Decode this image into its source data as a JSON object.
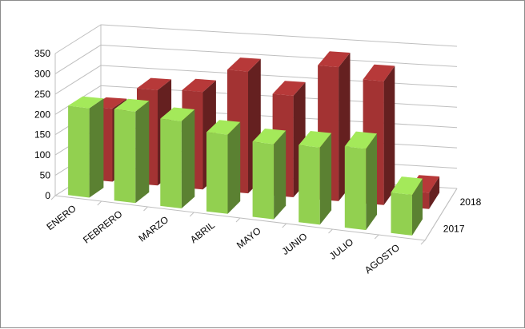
{
  "chart_data": {
    "type": "bar",
    "subtype": "3d-column-stacked-depth",
    "title": "",
    "xlabel": "",
    "ylabel": "",
    "ylim": [
      0,
      350
    ],
    "yticks": [
      0,
      50,
      100,
      150,
      200,
      250,
      300,
      350
    ],
    "grid": true,
    "categories": [
      "ENERO",
      "FEBRERO",
      "MARZO",
      "ABRIL",
      "MAYO",
      "JUNIO",
      "JULIO",
      "AGOSTO"
    ],
    "series": [
      {
        "name": "2017",
        "color": "#92D050",
        "values": [
          220,
          225,
          215,
          195,
          185,
          190,
          200,
          100
        ]
      },
      {
        "name": "2018",
        "color": "#A33333",
        "values": [
          180,
          235,
          240,
          300,
          250,
          330,
          305,
          40
        ]
      }
    ],
    "depth_axis_labels": [
      "2018",
      "2017"
    ]
  }
}
